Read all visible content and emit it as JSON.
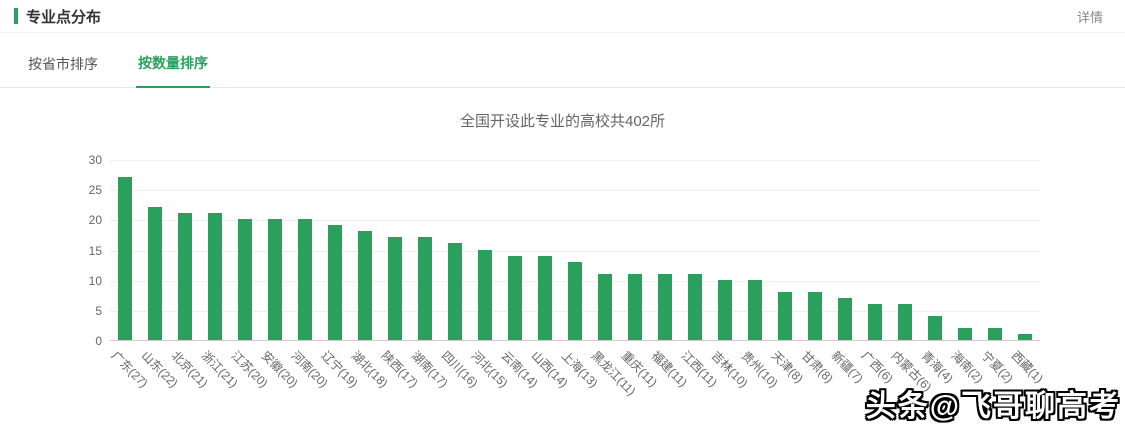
{
  "header": {
    "title": "专业点分布",
    "detail_link": "详情"
  },
  "tabs": [
    {
      "label": "按省市排序",
      "active": false
    },
    {
      "label": "按数量排序",
      "active": true
    }
  ],
  "chart_data": {
    "type": "bar",
    "title": "全国开设此专业的高校共402所",
    "categories": [
      "广东",
      "山东",
      "北京",
      "浙江",
      "江苏",
      "安徽",
      "河南",
      "辽宁",
      "湖北",
      "陕西",
      "湖南",
      "四川",
      "河北",
      "云南",
      "山西",
      "上海",
      "黑龙江",
      "重庆",
      "福建",
      "江西",
      "吉林",
      "贵州",
      "天津",
      "甘肃",
      "新疆",
      "广西",
      "内蒙古",
      "青海",
      "海南",
      "宁夏",
      "西藏"
    ],
    "values": [
      27,
      22,
      21,
      21,
      20,
      20,
      20,
      19,
      18,
      17,
      17,
      16,
      15,
      14,
      14,
      13,
      11,
      11,
      11,
      11,
      10,
      10,
      8,
      8,
      7,
      6,
      6,
      4,
      2,
      2,
      1
    ],
    "tick_labels": [
      "广东(27)",
      "山东(22)",
      "北京(21)",
      "浙江(21)",
      "江苏(20)",
      "安徽(20)",
      "河南(20)",
      "辽宁(19)",
      "湖北(18)",
      "陕西(17)",
      "湖南(17)",
      "四川(16)",
      "河北(15)",
      "云南(14)",
      "山西(14)",
      "上海(13)",
      "黑龙江(11)",
      "重庆(11)",
      "福建(11)",
      "江西(11)",
      "吉林(10)",
      "贵州(10)",
      "天津(8)",
      "甘肃(8)",
      "新疆(7)",
      "广西(6)",
      "内蒙古(6)",
      "青海(4)",
      "海南(2)",
      "宁夏(2)",
      "西藏(1)"
    ],
    "xlabel": "",
    "ylabel": "",
    "ylim": [
      0,
      30
    ],
    "yticks": [
      0,
      5,
      10,
      15,
      20,
      25,
      30
    ],
    "grid": true,
    "legend": false,
    "bar_color": "#2ba05d"
  },
  "watermark": {
    "text": "头条@飞哥聊高考"
  },
  "colors": {
    "accent_green": "#2ba05d",
    "grid": "#eeeeee",
    "axis": "#cccccc"
  }
}
